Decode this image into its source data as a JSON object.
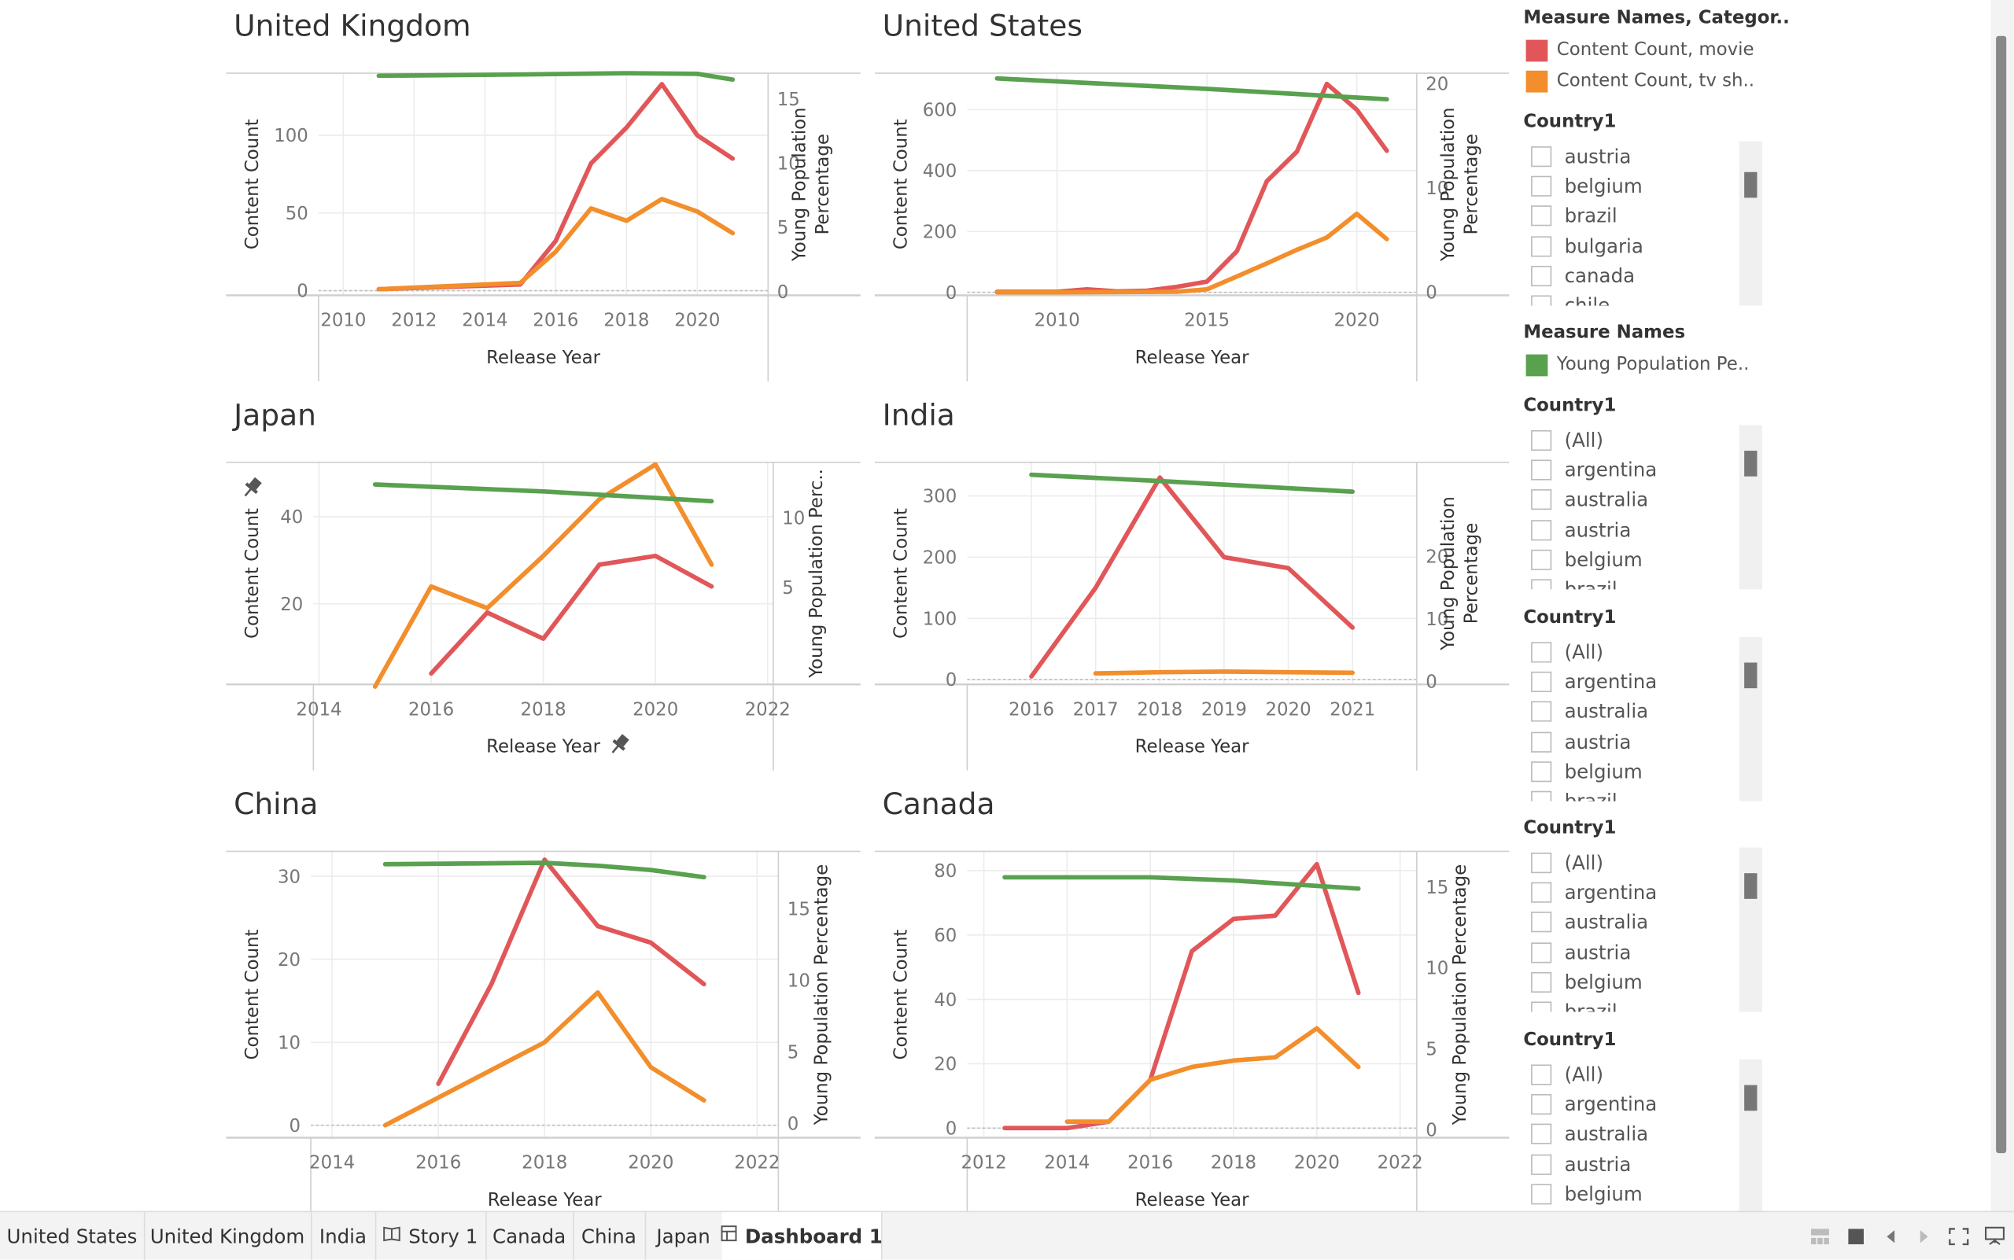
{
  "colors": {
    "movie": "#e15759",
    "tv": "#f28e2b",
    "young": "#59a14f",
    "grid": "#ececec",
    "axis": "#cfcfcf"
  },
  "charts": [
    {
      "title": "United Kingdom",
      "xlabel": "Release Year",
      "ylabel_left": "Content Count",
      "ylabel_right": [
        "Young Population",
        "Percentage"
      ],
      "x_ticks": [
        2010,
        2012,
        2014,
        2016,
        2018,
        2020
      ],
      "y_ticks": [
        0,
        50,
        100
      ],
      "y2_ticks": [
        0,
        5,
        10,
        15
      ],
      "xlim": [
        2009.3,
        2022
      ],
      "ylim": [
        -3,
        140
      ],
      "y2lim": [
        -0.3,
        17
      ],
      "chart_data": {
        "type": "line",
        "series": [
          {
            "name": "Content Count, movie",
            "points": [
              [
                2011,
                1
              ],
              [
                2015,
                4
              ],
              [
                2016,
                32
              ],
              [
                2017,
                82
              ],
              [
                2018,
                105
              ],
              [
                2019,
                133
              ],
              [
                2020,
                100
              ],
              [
                2021,
                85
              ]
            ]
          },
          {
            "name": "Content Count, tv sh..",
            "points": [
              [
                2011,
                1
              ],
              [
                2015,
                5
              ],
              [
                2016,
                25
              ],
              [
                2017,
                53
              ],
              [
                2018,
                45
              ],
              [
                2019,
                59
              ],
              [
                2020,
                51
              ],
              [
                2021,
                37
              ]
            ]
          },
          {
            "name": "Young Population Pe..",
            "axis": "right",
            "points": [
              [
                2011,
                16.8
              ],
              [
                2015,
                16.9
              ],
              [
                2018,
                17.0
              ],
              [
                2020,
                16.95
              ],
              [
                2021,
                16.5
              ]
            ]
          }
        ]
      }
    },
    {
      "title": "United States",
      "xlabel": "Release Year",
      "ylabel_left": "Content Count",
      "ylabel_right": [
        "Young Population",
        "Percentage"
      ],
      "x_ticks": [
        2010,
        2015,
        2020
      ],
      "y_ticks": [
        0,
        200,
        400,
        600
      ],
      "y2_ticks": [
        0,
        10,
        20
      ],
      "xlim": [
        2007,
        2022
      ],
      "ylim": [
        -10,
        720
      ],
      "y2lim": [
        -0.3,
        21
      ],
      "chart_data": {
        "type": "line",
        "series": [
          {
            "name": "Content Count, movie",
            "points": [
              [
                2008,
                2
              ],
              [
                2010,
                2
              ],
              [
                2011,
                10
              ],
              [
                2012,
                3
              ],
              [
                2013,
                5
              ],
              [
                2014,
                18
              ],
              [
                2015,
                35
              ],
              [
                2016,
                135
              ],
              [
                2017,
                365
              ],
              [
                2018,
                462
              ],
              [
                2019,
                685
              ],
              [
                2020,
                600
              ],
              [
                2021,
                465
              ]
            ]
          },
          {
            "name": "Content Count, tv sh..",
            "points": [
              [
                2008,
                0
              ],
              [
                2010,
                0
              ],
              [
                2014,
                2
              ],
              [
                2015,
                10
              ],
              [
                2016,
                52
              ],
              [
                2017,
                95
              ],
              [
                2018,
                140
              ],
              [
                2019,
                180
              ],
              [
                2020,
                258
              ],
              [
                2021,
                175
              ]
            ]
          },
          {
            "name": "Young Population Pe..",
            "axis": "right",
            "points": [
              [
                2008,
                20.5
              ],
              [
                2015,
                19.5
              ],
              [
                2021,
                18.5
              ]
            ]
          }
        ]
      }
    },
    {
      "title": "Japan",
      "xlabel": "Release Year",
      "ylabel_left": "Content Count",
      "ylabel_right": [
        "Young Population Perc.."
      ],
      "x_ticks": [
        2014,
        2016,
        2018,
        2020,
        2022
      ],
      "y_ticks": [
        20,
        40
      ],
      "y2_ticks": [
        5,
        10
      ],
      "xlim": [
        2013.9,
        2022.1
      ],
      "ylim": [
        1.5,
        52.5
      ],
      "y2lim": [
        -2,
        14
      ],
      "chart_data": {
        "type": "line",
        "series": [
          {
            "name": "Content Count, movie",
            "points": [
              [
                2016,
                4
              ],
              [
                2017,
                18
              ],
              [
                2018,
                12
              ],
              [
                2019,
                29
              ],
              [
                2020,
                31
              ],
              [
                2021,
                24
              ]
            ]
          },
          {
            "name": "Content Count, tv sh..",
            "points": [
              [
                2015,
                1
              ],
              [
                2016,
                24
              ],
              [
                2017,
                19
              ],
              [
                2018,
                31
              ],
              [
                2019,
                44
              ],
              [
                2020,
                52
              ],
              [
                2021,
                29
              ]
            ]
          },
          {
            "name": "Young Population Pe..",
            "axis": "right",
            "points": [
              [
                2015,
                12.4
              ],
              [
                2018,
                11.9
              ],
              [
                2021,
                11.2
              ]
            ]
          }
        ]
      }
    },
    {
      "title": "India",
      "xlabel": "Release Year",
      "ylabel_left": "Content Count",
      "ylabel_right": [
        "Young Population",
        "Percentage"
      ],
      "x_ticks": [
        2016,
        2017,
        2018,
        2019,
        2020,
        2021
      ],
      "y_ticks": [
        0,
        100,
        200,
        300
      ],
      "y2_ticks": [
        0,
        10,
        20
      ],
      "xlim": [
        2015,
        2022
      ],
      "ylim": [
        -8,
        355
      ],
      "y2lim": [
        -0.5,
        35
      ],
      "chart_data": {
        "type": "line",
        "series": [
          {
            "name": "Content Count, movie",
            "points": [
              [
                2016,
                5
              ],
              [
                2017,
                150
              ],
              [
                2018,
                330
              ],
              [
                2019,
                200
              ],
              [
                2020,
                182
              ],
              [
                2021,
                85
              ]
            ]
          },
          {
            "name": "Content Count, tv sh..",
            "points": [
              [
                2017,
                10
              ],
              [
                2018,
                12
              ],
              [
                2019,
                13
              ],
              [
                2020,
                12
              ],
              [
                2021,
                11
              ]
            ]
          },
          {
            "name": "Young Population Pe..",
            "axis": "right",
            "points": [
              [
                2016,
                33
              ],
              [
                2018,
                32
              ],
              [
                2021,
                30.3
              ]
            ]
          }
        ]
      }
    },
    {
      "title": "China",
      "xlabel": "Release Year",
      "ylabel_left": "Content Count",
      "ylabel_right": [
        "Young Population Percentage"
      ],
      "x_ticks": [
        2014,
        2016,
        2018,
        2020,
        2022
      ],
      "y_ticks": [
        0,
        10,
        20,
        30
      ],
      "y2_ticks": [
        0,
        5,
        10,
        15
      ],
      "xlim": [
        2013.6,
        2022.4
      ],
      "ylim": [
        -1.5,
        33
      ],
      "y2lim": [
        -1,
        19
      ],
      "chart_data": {
        "type": "line",
        "series": [
          {
            "name": "Content Count, movie",
            "points": [
              [
                2016,
                5
              ],
              [
                2017,
                17
              ],
              [
                2018,
                32
              ],
              [
                2019,
                24
              ],
              [
                2020,
                22
              ],
              [
                2021,
                17
              ]
            ]
          },
          {
            "name": "Content Count, tv sh..",
            "points": [
              [
                2015,
                0
              ],
              [
                2018,
                10
              ],
              [
                2019,
                16
              ],
              [
                2020,
                7
              ],
              [
                2021,
                3
              ]
            ]
          },
          {
            "name": "Young Population Pe..",
            "axis": "right",
            "points": [
              [
                2015,
                18.1
              ],
              [
                2018,
                18.2
              ],
              [
                2019,
                18.0
              ],
              [
                2020,
                17.7
              ],
              [
                2021,
                17.2
              ]
            ]
          }
        ]
      }
    },
    {
      "title": "Canada",
      "xlabel": "Release Year",
      "ylabel_left": "Content Count",
      "ylabel_right": [
        "Young Population Percentage"
      ],
      "x_ticks": [
        2012,
        2014,
        2016,
        2018,
        2020,
        2022
      ],
      "y_ticks": [
        0,
        20,
        40,
        60,
        80
      ],
      "y2_ticks": [
        0,
        5,
        10,
        15
      ],
      "xlim": [
        2011.6,
        2022.4
      ],
      "ylim": [
        -3,
        86
      ],
      "y2lim": [
        -0.5,
        17.2
      ],
      "chart_data": {
        "type": "line",
        "series": [
          {
            "name": "Content Count, movie",
            "points": [
              [
                2012.5,
                0
              ],
              [
                2014,
                0
              ],
              [
                2015,
                2
              ],
              [
                2016,
                15
              ],
              [
                2017,
                55
              ],
              [
                2018,
                65
              ],
              [
                2019,
                66
              ],
              [
                2020,
                82
              ],
              [
                2021,
                42
              ]
            ]
          },
          {
            "name": "Content Count, tv sh..",
            "points": [
              [
                2014,
                2
              ],
              [
                2015,
                2
              ],
              [
                2016,
                15
              ],
              [
                2017,
                19
              ],
              [
                2018,
                21
              ],
              [
                2019,
                22
              ],
              [
                2020,
                31
              ],
              [
                2021,
                19
              ]
            ]
          },
          {
            "name": "Young Population Pe..",
            "axis": "right",
            "points": [
              [
                2012.5,
                15.6
              ],
              [
                2016,
                15.6
              ],
              [
                2018,
                15.4
              ],
              [
                2021,
                14.9
              ]
            ]
          }
        ]
      }
    }
  ],
  "legend1": {
    "title": "Measure Names, Categor..",
    "items": [
      {
        "label": "Content Count, movie",
        "color": "#e15759"
      },
      {
        "label": "Content Count, tv sh..",
        "color": "#f28e2b"
      }
    ]
  },
  "legend2": {
    "title": "Measure Names",
    "items": [
      {
        "label": "Young Population Pe..",
        "color": "#59a14f"
      }
    ]
  },
  "filters": [
    {
      "title": "Country1",
      "items": [
        "austria",
        "belgium",
        "brazil",
        "bulgaria",
        "canada",
        "chile"
      ]
    },
    {
      "title": "Country1",
      "items": [
        "(All)",
        "argentina",
        "australia",
        "austria",
        "belgium",
        "brazil"
      ]
    },
    {
      "title": "Country1",
      "items": [
        "(All)",
        "argentina",
        "australia",
        "austria",
        "belgium",
        "brazil"
      ]
    },
    {
      "title": "Country1",
      "items": [
        "(All)",
        "argentina",
        "australia",
        "austria",
        "belgium",
        "brazil"
      ]
    },
    {
      "title": "Country1",
      "items": [
        "(All)",
        "argentina",
        "australia",
        "austria",
        "belgium"
      ]
    }
  ],
  "tabs": [
    {
      "label": "United States"
    },
    {
      "label": "United Kingdom"
    },
    {
      "label": "India"
    },
    {
      "label": "Story 1",
      "icon": "story-icon"
    },
    {
      "label": "Canada"
    },
    {
      "label": "China"
    },
    {
      "label": "Japan"
    },
    {
      "label": "Dashboard 1",
      "icon": "dashboard-icon",
      "active": true
    }
  ]
}
